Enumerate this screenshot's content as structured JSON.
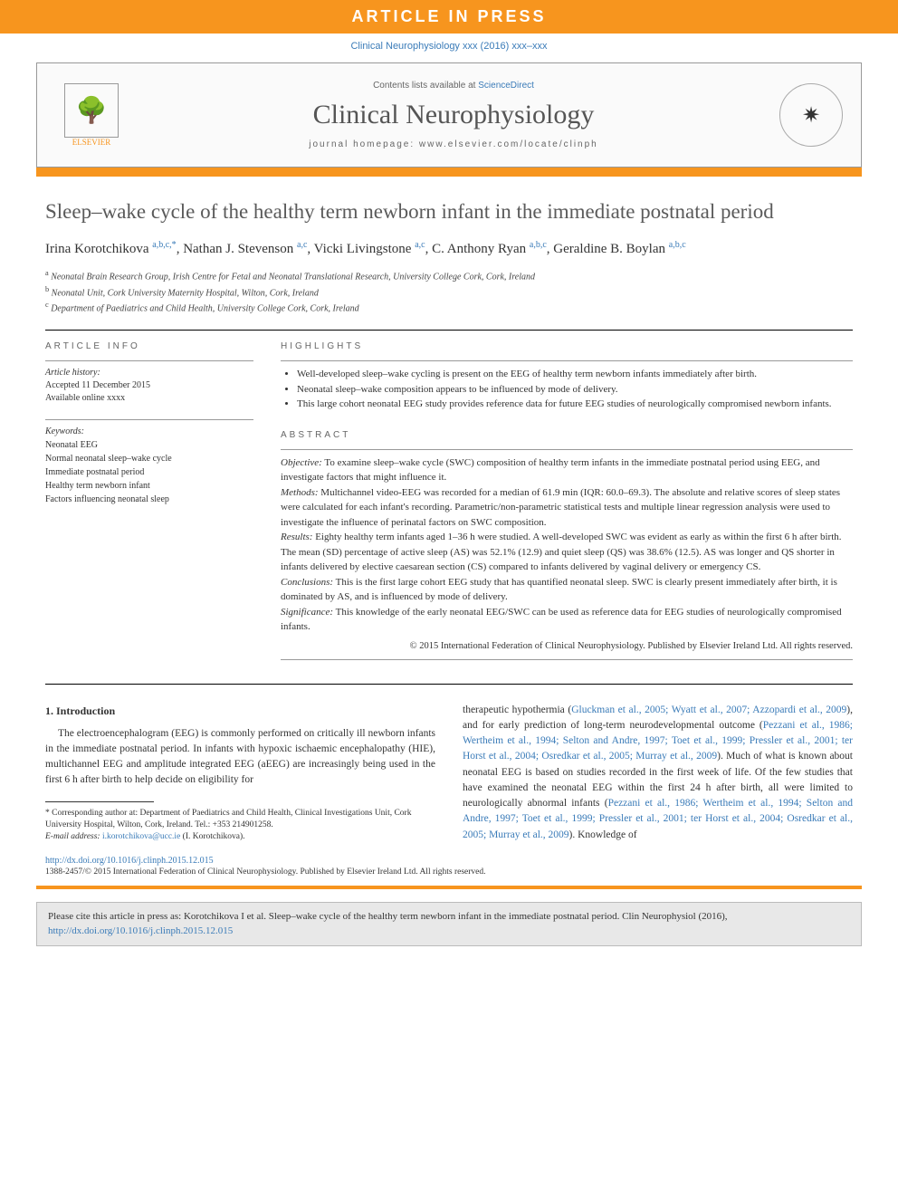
{
  "banner": {
    "text": "ARTICLE IN PRESS"
  },
  "journal_ref": "Clinical Neurophysiology xxx (2016) xxx–xxx",
  "header": {
    "contents_prefix": "Contents lists available at ",
    "contents_link": "ScienceDirect",
    "journal_title": "Clinical Neurophysiology",
    "homepage_prefix": "journal homepage: ",
    "homepage_url": "www.elsevier.com/locate/clinph",
    "elsevier_label": "ELSEVIER"
  },
  "title": "Sleep–wake cycle of the healthy term newborn infant in the immediate postnatal period",
  "authors_html": "Irina Korotchikova <sup>a,b,c,*</sup>, Nathan J. Stevenson <sup>a,c</sup>, Vicki Livingstone <sup>a,c</sup>, C. Anthony Ryan <sup>a,b,c</sup>, Geraldine B. Boylan <sup>a,b,c</sup>",
  "affiliations": {
    "a": "Neonatal Brain Research Group, Irish Centre for Fetal and Neonatal Translational Research, University College Cork, Cork, Ireland",
    "b": "Neonatal Unit, Cork University Maternity Hospital, Wilton, Cork, Ireland",
    "c": "Department of Paediatrics and Child Health, University College Cork, Cork, Ireland"
  },
  "article_info": {
    "label": "ARTICLE INFO",
    "history_label": "Article history:",
    "accepted": "Accepted 11 December 2015",
    "online": "Available online xxxx",
    "keywords_label": "Keywords:",
    "keywords": [
      "Neonatal EEG",
      "Normal neonatal sleep–wake cycle",
      "Immediate postnatal period",
      "Healthy term newborn infant",
      "Factors influencing neonatal sleep"
    ]
  },
  "highlights": {
    "label": "HIGHLIGHTS",
    "items": [
      "Well-developed sleep–wake cycling is present on the EEG of healthy term newborn infants immediately after birth.",
      "Neonatal sleep–wake composition appears to be influenced by mode of delivery.",
      "This large cohort neonatal EEG study provides reference data for future EEG studies of neurologically compromised newborn infants."
    ]
  },
  "abstract": {
    "label": "ABSTRACT",
    "objective_lbl": "Objective:",
    "objective": " To examine sleep–wake cycle (SWC) composition of healthy term infants in the immediate postnatal period using EEG, and investigate factors that might influence it.",
    "methods_lbl": "Methods:",
    "methods": " Multichannel video-EEG was recorded for a median of 61.9 min (IQR: 60.0–69.3). The absolute and relative scores of sleep states were calculated for each infant's recording. Parametric/non-parametric statistical tests and multiple linear regression analysis were used to investigate the influence of perinatal factors on SWC composition.",
    "results_lbl": "Results:",
    "results": " Eighty healthy term infants aged 1–36 h were studied. A well-developed SWC was evident as early as within the first 6 h after birth. The mean (SD) percentage of active sleep (AS) was 52.1% (12.9) and quiet sleep (QS) was 38.6% (12.5). AS was longer and QS shorter in infants delivered by elective caesarean section (CS) compared to infants delivered by vaginal delivery or emergency CS.",
    "conclusions_lbl": "Conclusions:",
    "conclusions": " This is the first large cohort EEG study that has quantified neonatal sleep. SWC is clearly present immediately after birth, it is dominated by AS, and is influenced by mode of delivery.",
    "significance_lbl": "Significance:",
    "significance": " This knowledge of the early neonatal EEG/SWC can be used as reference data for EEG studies of neurologically compromised infants.",
    "copyright": "© 2015 International Federation of Clinical Neurophysiology. Published by Elsevier Ireland Ltd. All rights reserved."
  },
  "intro": {
    "heading": "1. Introduction",
    "col1": "The electroencephalogram (EEG) is commonly performed on critically ill newborn infants in the immediate postnatal period. In infants with hypoxic ischaemic encephalopathy (HIE), multichannel EEG and amplitude integrated EEG (aEEG) are increasingly being used in the first 6 h after birth to help decide on eligibility for",
    "col2_pre": "therapeutic hypothermia (",
    "col2_cite1": "Gluckman et al., 2005; Wyatt et al., 2007; Azzopardi et al., 2009",
    "col2_mid1": "), and for early prediction of long-term neurodevelopmental outcome (",
    "col2_cite2": "Pezzani et al., 1986; Wertheim et al., 1994; Selton and Andre, 1997; Toet et al., 1999; Pressler et al., 2001; ter Horst et al., 2004; Osredkar et al., 2005; Murray et al., 2009",
    "col2_mid2": "). Much of what is known about neonatal EEG is based on studies recorded in the first week of life. Of the few studies that have examined the neonatal EEG within the first 24 h after birth, all were limited to neurologically abnormal infants (",
    "col2_cite3": "Pezzani et al., 1986; Wertheim et al., 1994; Selton and Andre, 1997; Toet et al., 1999; Pressler et al., 2001; ter Horst et al., 2004; Osredkar et al., 2005; Murray et al., 2009",
    "col2_post": "). Knowledge of"
  },
  "footnotes": {
    "corresponding": "* Corresponding author at: Department of Paediatrics and Child Health, Clinical Investigations Unit, Cork University Hospital, Wilton, Cork, Ireland. Tel.: +353 214901258.",
    "email_lbl": "E-mail address: ",
    "email": "i.korotchikova@ucc.ie",
    "email_author": " (I. Korotchikova)."
  },
  "doi": "http://dx.doi.org/10.1016/j.clinph.2015.12.015",
  "issn": "1388-2457/© 2015 International Federation of Clinical Neurophysiology. Published by Elsevier Ireland Ltd. All rights reserved.",
  "citation_box": {
    "text": "Please cite this article in press as: Korotchikova I et al. Sleep–wake cycle of the healthy term newborn infant in the immediate postnatal period. Clin Neurophysiol (2016), ",
    "link": "http://dx.doi.org/10.1016/j.clinph.2015.12.015"
  },
  "colors": {
    "orange": "#f7951e",
    "link": "#3a7bb8"
  }
}
